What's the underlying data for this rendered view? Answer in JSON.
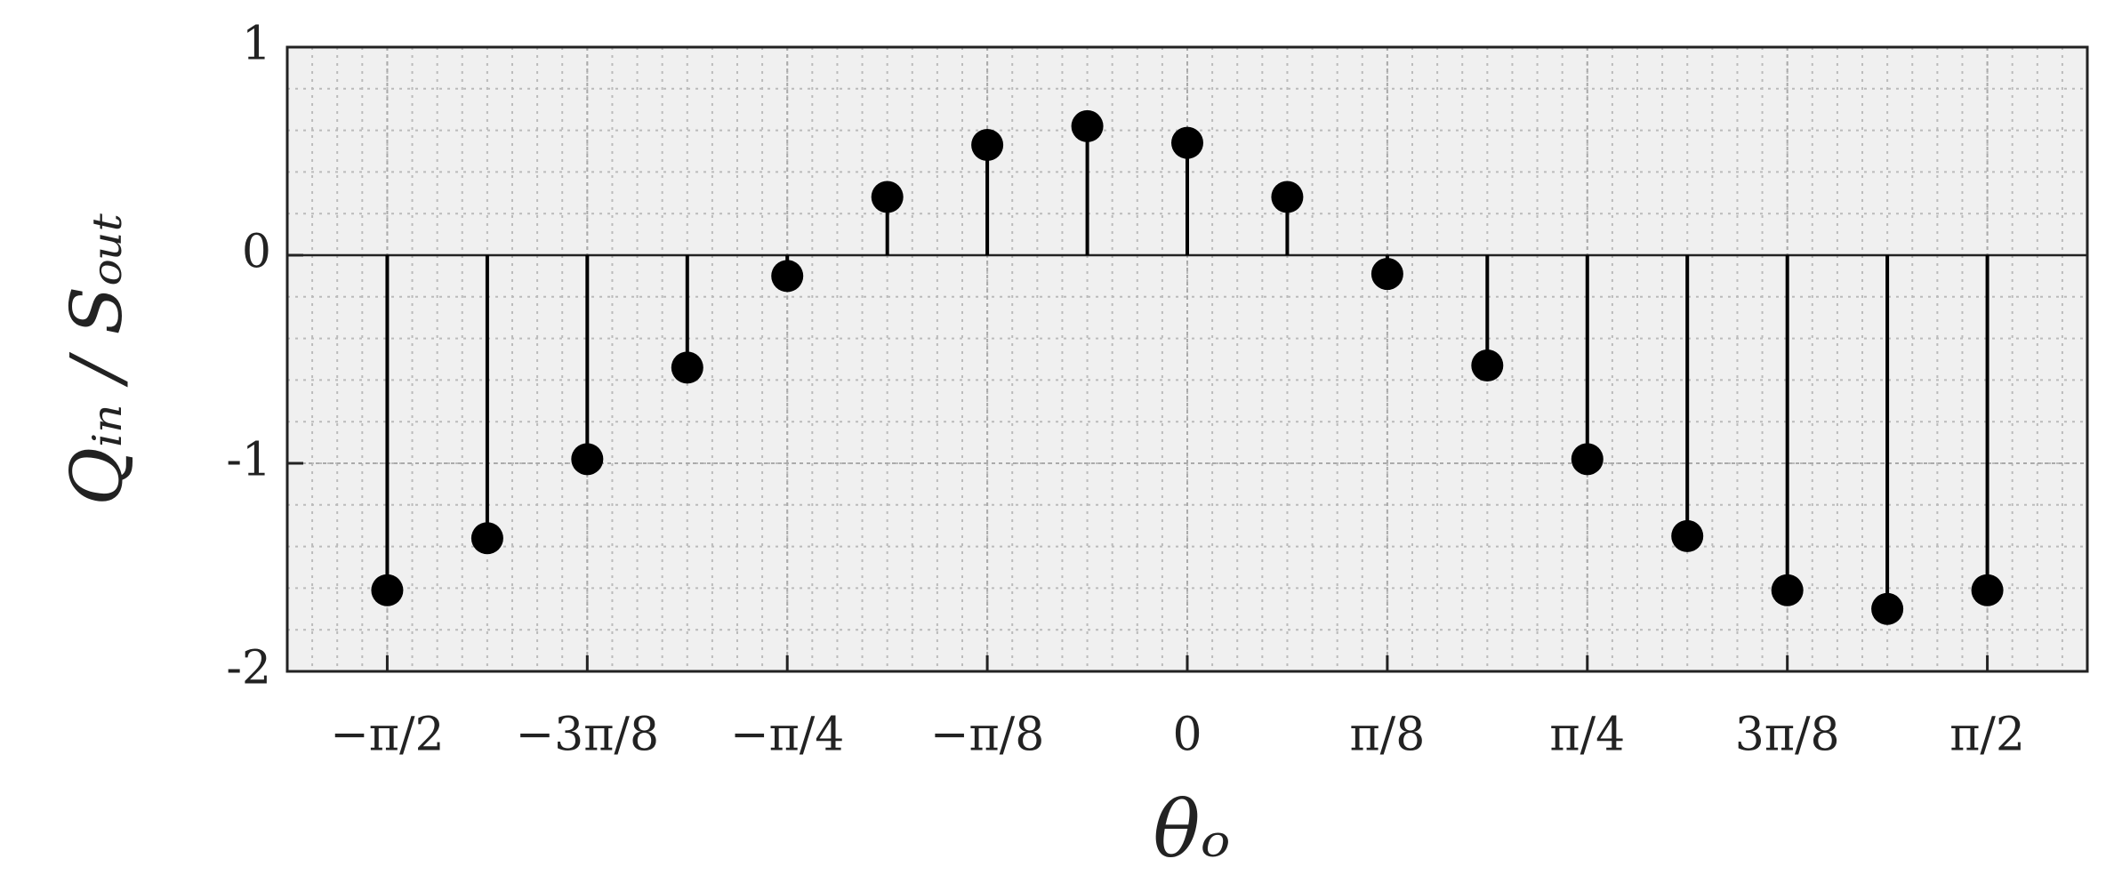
{
  "chart_data": {
    "type": "stem",
    "xlabel": "θₒ",
    "ylabel": "Qᵢₙ / Sₒᵤₜ",
    "x": [
      -1.5708,
      -1.3744,
      -1.1781,
      -0.9817,
      -0.7854,
      -0.589,
      -0.3927,
      -0.1963,
      0,
      0.1963,
      0.3927,
      0.589,
      0.7854,
      0.9817,
      1.1781,
      1.3744,
      1.5708
    ],
    "values": [
      -1.61,
      -1.36,
      -0.98,
      -0.54,
      -0.1,
      0.28,
      0.53,
      0.62,
      0.54,
      0.28,
      -0.09,
      -0.53,
      -0.98,
      -1.35,
      -1.61,
      -1.7,
      -1.61
    ],
    "color": "#000000",
    "xlim": [
      -1.7671,
      1.7671
    ],
    "ylim": [
      -2,
      1
    ],
    "xticks": [
      {
        "value": -1.5708,
        "label": "−π/2"
      },
      {
        "value": -1.1781,
        "label": "−3π/8"
      },
      {
        "value": -0.7854,
        "label": "−π/4"
      },
      {
        "value": -0.3927,
        "label": "−π/8"
      },
      0,
      {
        "value": 0.3927,
        "label": "π/8"
      },
      {
        "value": 0.7854,
        "label": "π/4"
      },
      {
        "value": 1.1781,
        "label": "3π/8"
      },
      {
        "value": 1.5708,
        "label": "π/2"
      }
    ],
    "yticks": [
      -2,
      -1,
      0,
      1
    ],
    "grid": true,
    "minor_grid": true
  }
}
